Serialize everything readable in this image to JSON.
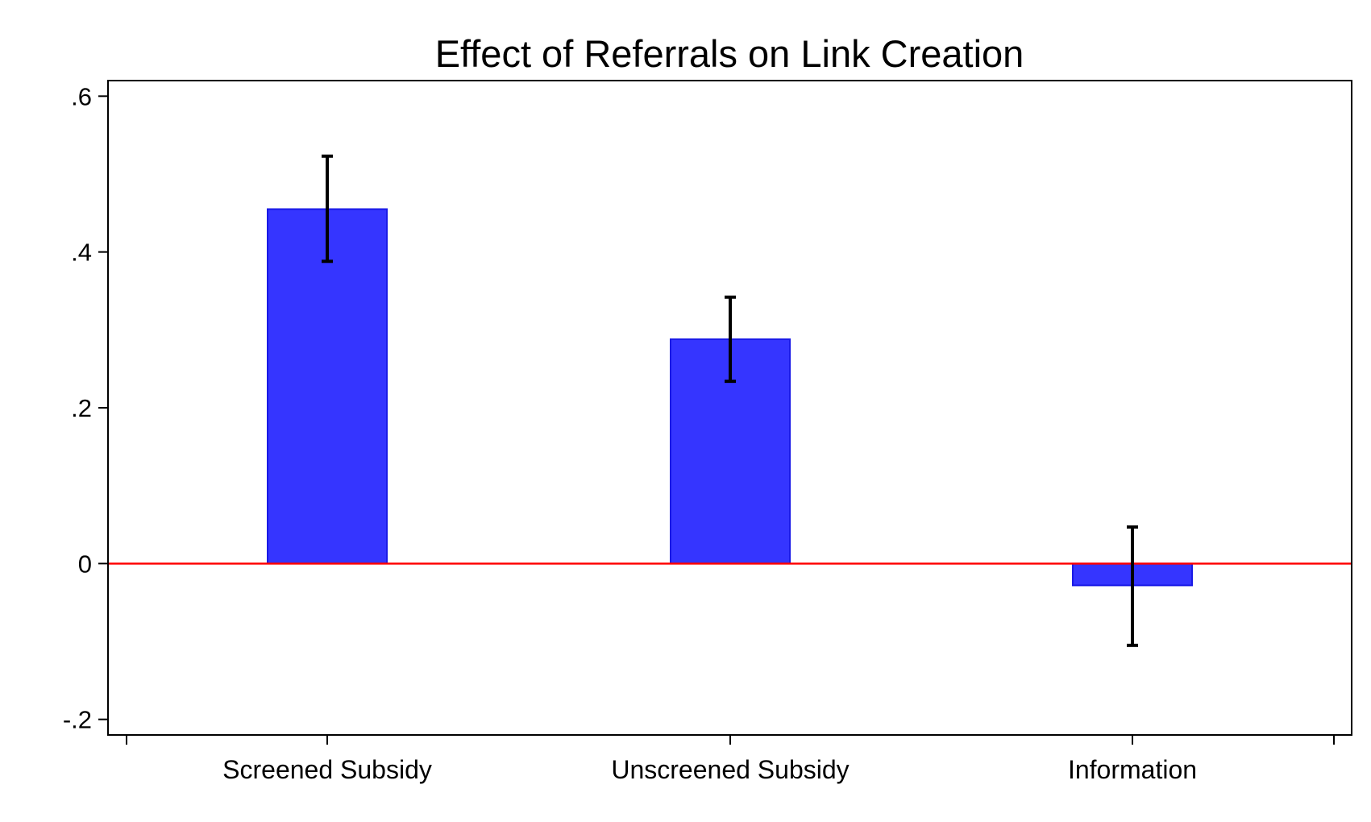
{
  "chart_data": {
    "type": "bar",
    "title": "Effect of Referrals on Link Creation",
    "xlabel": "",
    "ylabel": "",
    "categories": [
      "Screened Subsidy",
      "Unscreened Subsidy",
      "Information"
    ],
    "values": [
      0.455,
      0.288,
      -0.028
    ],
    "ci_low": [
      0.388,
      0.234,
      -0.105
    ],
    "ci_high": [
      0.523,
      0.342,
      0.047
    ],
    "ylim": [
      -0.22,
      0.62
    ],
    "yticks": [
      -0.2,
      0,
      0.2,
      0.4,
      0.6
    ],
    "ytick_labels": [
      "-.2",
      "0",
      ".2",
      ".4",
      ".6"
    ],
    "reference_line": 0,
    "grid": false,
    "legend": "none",
    "colors": {
      "bar_fill": "#3535ff",
      "bar_edge": "#1a1ae6",
      "reference_line": "#ff0000",
      "error_bar": "#000000"
    }
  }
}
